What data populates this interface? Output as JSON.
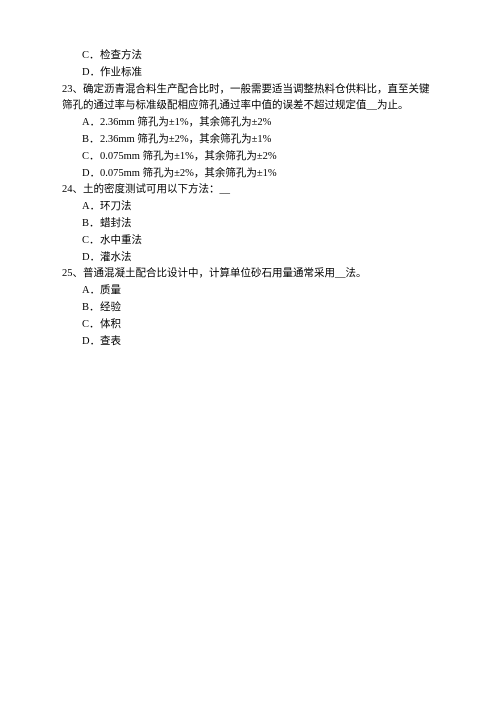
{
  "prevOptions": [
    {
      "letter": "C．",
      "text": "检查方法"
    },
    {
      "letter": "D．",
      "text": "作业标准"
    }
  ],
  "q23": {
    "line1": "23、确定沥青混合料生产配合比时，一般需要适当调整热料仓供料比，直至关键",
    "line2": "筛孔的通过率与标准级配相应筛孔通过率中值的误差不超过规定值__为止。",
    "options": [
      {
        "letter": "A．",
        "text": "2.36mm 筛孔为±1%，其余筛孔为±2%"
      },
      {
        "letter": "B．",
        "text": "2.36mm 筛孔为±2%，其余筛孔为±1%"
      },
      {
        "letter": "C．",
        "text": "0.075mm 筛孔为±1%，其余筛孔为±2%"
      },
      {
        "letter": "D．",
        "text": "0.075mm 筛孔为±2%，其余筛孔为±1%"
      }
    ]
  },
  "q24": {
    "text": "24、土的密度测试可用以下方法：__",
    "options": [
      {
        "letter": "A．",
        "text": "环刀法"
      },
      {
        "letter": "B．",
        "text": "蜡封法"
      },
      {
        "letter": "C．",
        "text": "水中重法"
      },
      {
        "letter": "D．",
        "text": "灌水法"
      }
    ]
  },
  "q25": {
    "text": "25、普通混凝土配合比设计中，计算单位砂石用量通常采用__法。",
    "options": [
      {
        "letter": "A．",
        "text": "质量"
      },
      {
        "letter": "B．",
        "text": "经验"
      },
      {
        "letter": "C．",
        "text": "体积"
      },
      {
        "letter": "D．",
        "text": "查表"
      }
    ]
  }
}
